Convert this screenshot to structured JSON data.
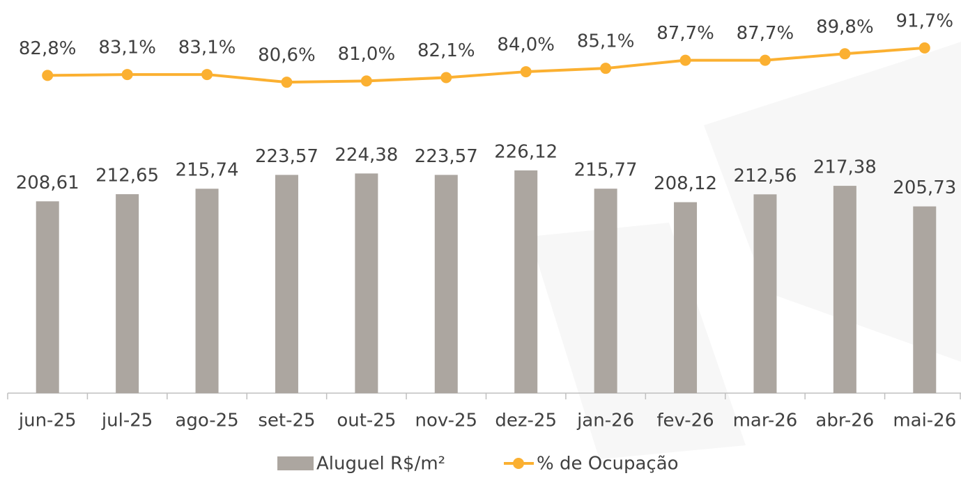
{
  "chart_data": {
    "type": "bar_line",
    "categories": [
      "jun-25",
      "jul-25",
      "ago-25",
      "set-25",
      "out-25",
      "nov-25",
      "dez-25",
      "jan-26",
      "fev-26",
      "mar-26",
      "abr-26",
      "mai-26"
    ],
    "series": [
      {
        "name": "Aluguel R$/m²",
        "type": "bar",
        "color": "#aca6a0",
        "values": [
          208.61,
          212.65,
          215.74,
          223.57,
          224.38,
          223.57,
          226.12,
          215.77,
          208.12,
          212.56,
          217.38,
          205.73
        ],
        "value_labels": [
          "208,61",
          "212,65",
          "215,74",
          "223,57",
          "224,38",
          "223,57",
          "226,12",
          "215,77",
          "208,12",
          "212,56",
          "217,38",
          "205,73"
        ]
      },
      {
        "name": "% de Ocupação",
        "type": "line",
        "axis": "y2",
        "color": "#fbb031",
        "values": [
          82.8,
          83.1,
          83.1,
          80.6,
          81.0,
          82.1,
          84.0,
          85.1,
          87.7,
          87.7,
          89.8,
          91.7
        ],
        "value_labels": [
          "82,8%",
          "83,1%",
          "83,1%",
          "80,6%",
          "81,0%",
          "82,1%",
          "84,0%",
          "85,1%",
          "87,7%",
          "87,7%",
          "89,8%",
          "91,7%"
        ]
      }
    ],
    "ylim": [
      100,
      310
    ],
    "y2lim": [
      -20,
      100
    ],
    "legend": "bottom"
  }
}
